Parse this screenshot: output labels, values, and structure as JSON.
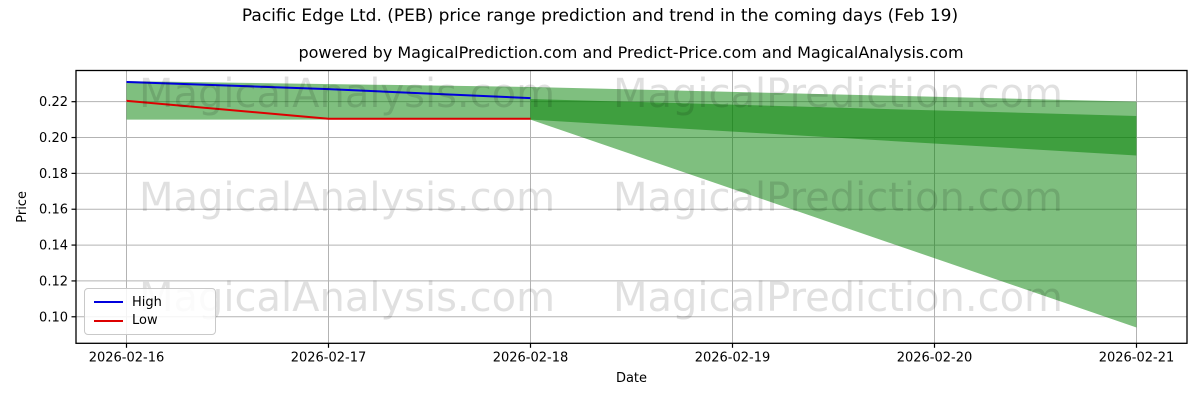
{
  "title": "Pacific Edge Ltd. (PEB) price range prediction and trend in the coming days (Feb 19)",
  "subtitle": "powered by MagicalPrediction.com and Predict-Price.com and MagicalAnalysis.com",
  "watermarks": {
    "left_text": "MagicalAnalysis.com",
    "right_text": "MagicalPrediction.com"
  },
  "axes": {
    "x_label": "Date",
    "y_label": "Price"
  },
  "legend": [
    {
      "label": "High",
      "color": "#0000dd"
    },
    {
      "label": "Low",
      "color": "#dd0000"
    }
  ],
  "colors": {
    "band_fill": "rgba(0,128,0,0.5)",
    "grid": "#b3b3b3",
    "spine": "#000000",
    "watermark": "rgba(0,0,0,0.12)"
  },
  "chart_data": {
    "type": "line",
    "title": "Pacific Edge Ltd. (PEB) price range prediction and trend in the coming days (Feb 19)",
    "xlabel": "Date",
    "ylabel": "Price",
    "grid": true,
    "legend_position": "lower left",
    "x_tick_labels": [
      "2026-02-16",
      "2026-02-17",
      "2026-02-18",
      "2026-02-19",
      "2026-02-20",
      "2026-02-21"
    ],
    "x_tick_values": [
      0,
      1,
      2,
      3,
      4,
      5
    ],
    "y_tick_labels": [
      "0.22",
      "0.20",
      "0.18",
      "0.16",
      "0.14",
      "0.12",
      "0.10"
    ],
    "y_tick_values": [
      0.22,
      0.2,
      0.18,
      0.16,
      0.14,
      0.12,
      0.1
    ],
    "xlim": [
      -0.25,
      5.25
    ],
    "ylim": [
      0.0852,
      0.2374
    ],
    "series": [
      {
        "name": "High",
        "color": "#0000dd",
        "x": [
          0,
          1,
          2
        ],
        "y": [
          0.231,
          0.227,
          0.222
        ]
      },
      {
        "name": "Low",
        "color": "#dd0000",
        "x": [
          0,
          1,
          2
        ],
        "y": [
          0.2205,
          0.2105,
          0.2105
        ]
      }
    ],
    "bands": [
      {
        "name": "history-range-band",
        "x": [
          0,
          2
        ],
        "top": [
          0.2315,
          0.2282
        ],
        "bottom": [
          0.21,
          0.21
        ]
      },
      {
        "name": "forecast-outer-band",
        "x": [
          2,
          5
        ],
        "top": [
          0.2282,
          0.22
        ],
        "bottom": [
          0.21,
          0.094
        ]
      },
      {
        "name": "forecast-inner-band",
        "x": [
          2,
          5
        ],
        "top": [
          0.2215,
          0.212
        ],
        "bottom": [
          0.21,
          0.19
        ]
      }
    ]
  }
}
